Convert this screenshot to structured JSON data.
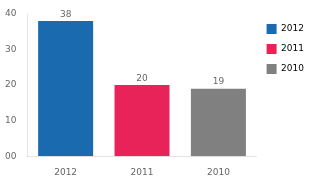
{
  "chart_data": {
    "type": "bar",
    "categories": [
      "2012",
      "2011",
      "2010"
    ],
    "values": [
      38,
      20,
      19
    ],
    "colors": [
      "#1a6ab0",
      "#e8235a",
      "#808080"
    ],
    "ylim": [
      0,
      40
    ],
    "yticks": [
      {
        "value": 0,
        "label": "00"
      },
      10,
      20,
      30,
      40
    ],
    "data_labels": true,
    "value_labels": [
      "38",
      "20",
      "19"
    ],
    "legend": "right",
    "grid": false
  }
}
